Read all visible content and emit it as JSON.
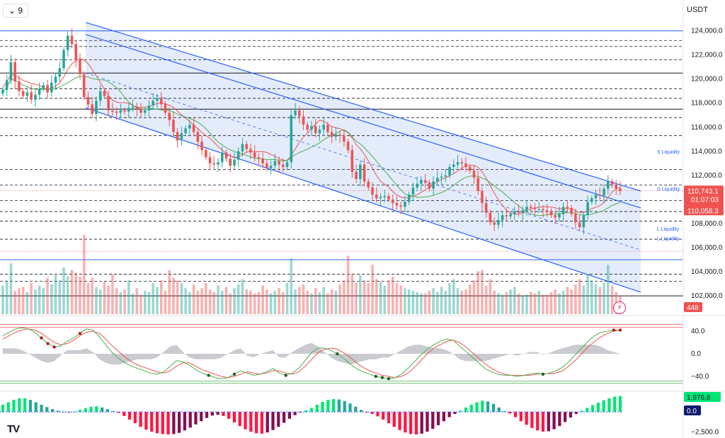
{
  "header": {
    "interval": "9",
    "currency": "USDT"
  },
  "logo_text": "TV",
  "colors": {
    "up": "#26a69a",
    "down": "#ef5350",
    "channel": "#2962ff",
    "channel_fill": "#dbe6fb",
    "bg": "#ffffff"
  },
  "icons": {
    "interval_menu": "chevron-down-icon",
    "alert": "lightning-icon"
  },
  "chart_data": [
    {
      "type": "candlestick",
      "title": "",
      "ylim": [
        101300,
        124800
      ],
      "y_ticks": [
        102000,
        104000,
        106000,
        108000,
        110000,
        112000,
        114000,
        116000,
        118000,
        120000,
        122000,
        124000
      ],
      "y_tick_labels": [
        "102,000.0",
        "104,000.0",
        "106,000.0",
        "108,000.0",
        "110,000.0",
        "112,000.0",
        "114,000.0",
        "116,000.0",
        "118,000.0",
        "120,000.0",
        "122,000.0",
        "124,000.0"
      ],
      "grid": false,
      "close": [
        119100,
        119900,
        121400,
        119800,
        119000,
        118600,
        118900,
        118300,
        118700,
        119200,
        119500,
        118900,
        119700,
        120200,
        120900,
        122400,
        123600,
        122900,
        121600,
        120400,
        118500,
        117900,
        117100,
        118200,
        119000,
        118600,
        117400,
        117300,
        117200,
        117400,
        117300,
        117600,
        117700,
        117500,
        117200,
        117400,
        117800,
        118200,
        118400,
        117900,
        117200,
        116600,
        115600,
        114900,
        115500,
        115900,
        116200,
        115600,
        114800,
        114100,
        113500,
        113000,
        112900,
        113100,
        113900,
        113400,
        112800,
        113300,
        114000,
        114600,
        114200,
        113900,
        113500,
        113400,
        113000,
        112600,
        112800,
        113200,
        112900,
        112700,
        113100,
        117000,
        117400,
        116900,
        116200,
        115800,
        116100,
        115500,
        115800,
        116200,
        115600,
        115200,
        115400,
        115300,
        114800,
        114100,
        112300,
        111700,
        112900,
        111500,
        111000,
        110400,
        110100,
        110200,
        110300,
        110000,
        109700,
        109500,
        109400,
        109800,
        110400,
        111000,
        111300,
        111600,
        111400,
        110900,
        111500,
        111800,
        111900,
        112000,
        112700,
        112900,
        113100,
        113000,
        112700,
        112400,
        111800,
        110700,
        109700,
        108900,
        108100,
        107900,
        108300,
        108700,
        108600,
        108800,
        109000,
        108900,
        109100,
        109400,
        109300,
        109200,
        109200,
        109100,
        109000,
        108700,
        108500,
        108800,
        109400,
        109300,
        108800,
        108100,
        107700,
        108700,
        109800,
        110100,
        110400,
        110300,
        110900,
        111500,
        111200,
        110900,
        110700
      ],
      "volume": [
        2200,
        2600,
        3900,
        1800,
        2000,
        2100,
        1700,
        2400,
        1900,
        2200,
        2000,
        2800,
        2300,
        3000,
        2600,
        3600,
        2900,
        3400,
        3200,
        2900,
        6100,
        2400,
        2800,
        2100,
        1900,
        2500,
        2200,
        3100,
        2000,
        1700,
        1900,
        2600,
        1600,
        2000,
        1500,
        1800,
        1700,
        2400,
        2100,
        2600,
        1800,
        3400,
        2800,
        2600,
        2400,
        2000,
        1700,
        2300,
        1800,
        2000,
        2400,
        1900,
        1700,
        2200,
        1800,
        2100,
        1600,
        2000,
        2300,
        2700,
        1900,
        1800,
        1600,
        1700,
        2200,
        1900,
        1600,
        1800,
        2000,
        1700,
        2400,
        4300,
        1900,
        2100,
        2300,
        1800,
        1600,
        2000,
        1700,
        2100,
        1600,
        1900,
        1800,
        2300,
        2600,
        4500,
        3100,
        2400,
        3000,
        2600,
        2400,
        3800,
        2700,
        2500,
        2200,
        2600,
        2900,
        2400,
        2200,
        2000,
        1900,
        1800,
        1700,
        1600,
        1600,
        1800,
        2000,
        1700,
        2100,
        1800,
        2400,
        2700,
        2000,
        1800,
        1900,
        2300,
        2600,
        3300,
        3400,
        2200,
        2700,
        1800,
        1600,
        1500,
        1700,
        1900,
        2100,
        1600,
        1400,
        1500,
        1700,
        1600,
        1800,
        1500,
        1500,
        1700,
        1900,
        1600,
        1800,
        2100,
        1900,
        2300,
        2700,
        2200,
        3100,
        2600,
        2300,
        2100,
        2400,
        3800,
        2200,
        1700,
        1400
      ]
    },
    {
      "type": "line",
      "title": "",
      "ylim": [
        -60,
        60
      ],
      "y_ticks": [
        40,
        0,
        -40
      ],
      "y_tick_labels": [
        "40.0",
        "0.0",
        "−40.0"
      ],
      "series": [
        {
          "values": [
            32,
            38,
            44,
            46,
            44,
            38,
            28,
            18,
            12,
            14,
            22,
            28,
            36,
            44,
            42,
            30,
            16,
            2,
            -8,
            -16,
            -22,
            -26,
            -30,
            -34,
            -36,
            -32,
            -22,
            -12,
            -14,
            -20,
            -28,
            -34,
            -38,
            -42,
            -44,
            -42,
            -36,
            -30,
            -34,
            -38,
            -36,
            -32,
            -26,
            -34,
            -38,
            -34,
            -26,
            -12,
            2,
            10,
            10,
            6,
            0,
            -8,
            -18,
            -26,
            -32,
            -36,
            -40,
            -42,
            -44,
            -42,
            -36,
            -26,
            -14,
            -2,
            8,
            16,
            22,
            26,
            24,
            14,
            4,
            -6,
            -16,
            -26,
            -32,
            -36,
            -38,
            -38,
            -40,
            -38,
            -36,
            -34,
            -36,
            -34,
            -30,
            -24,
            -14,
            -2,
            10,
            22,
            32,
            38,
            40,
            42,
            42
          ]
        },
        {
          "values": [
            26,
            32,
            38,
            42,
            44,
            42,
            36,
            28,
            20,
            16,
            18,
            24,
            32,
            38,
            40,
            36,
            26,
            14,
            4,
            -6,
            -14,
            -20,
            -24,
            -28,
            -32,
            -34,
            -30,
            -22,
            -16,
            -16,
            -22,
            -28,
            -32,
            -36,
            -40,
            -42,
            -40,
            -36,
            -32,
            -34,
            -36,
            -34,
            -30,
            -30,
            -34,
            -36,
            -32,
            -22,
            -10,
            2,
            8,
            10,
            8,
            2,
            -6,
            -16,
            -24,
            -30,
            -34,
            -38,
            -40,
            -42,
            -40,
            -34,
            -24,
            -12,
            0,
            10,
            16,
            22,
            24,
            20,
            12,
            2,
            -8,
            -18,
            -26,
            -32,
            -36,
            -38,
            -38,
            -38,
            -38,
            -36,
            -35,
            -35,
            -34,
            -30,
            -22,
            -12,
            0,
            12,
            22,
            30,
            36,
            40,
            42
          ]
        }
      ],
      "markers": [
        6,
        7,
        8,
        12,
        32,
        36,
        44,
        52,
        58,
        59,
        60,
        84,
        95,
        96,
        97,
        102,
        103
      ]
    },
    {
      "type": "bar",
      "title": "",
      "ylim": [
        -2800,
        2300
      ],
      "y_ticks": [
        -2500
      ],
      "y_tick_labels": [
        "−2,500.0"
      ],
      "values": [
        900,
        1200,
        1500,
        1700,
        1700,
        1500,
        1200,
        900,
        600,
        350,
        150,
        0,
        -50,
        60,
        250,
        450,
        650,
        700,
        550,
        350,
        100,
        -120,
        -500,
        -950,
        -1400,
        -1850,
        -2200,
        -2450,
        -2650,
        -2750,
        -2800,
        -2750,
        -2600,
        -2300,
        -1950,
        -1550,
        -1150,
        -750,
        -450,
        -350,
        -500,
        -850,
        -1300,
        -1750,
        -2150,
        -2450,
        -2650,
        -2700,
        -2550,
        -2250,
        -1850,
        -1350,
        -850,
        -400,
        -80,
        200,
        500,
        900,
        1250,
        1500,
        1600,
        1550,
        1350,
        1050,
        650,
        250,
        -50,
        -250,
        -550,
        -950,
        -1400,
        -1850,
        -2250,
        -2550,
        -2750,
        -2800,
        -2700,
        -2450,
        -2100,
        -1650,
        -1150,
        -650,
        -250,
        150,
        550,
        900,
        1200,
        1400,
        1300,
        1000,
        550,
        100,
        -200,
        -650,
        -1150,
        -1600,
        -2000,
        -2300,
        -2450,
        -2400,
        -2150,
        -1750,
        -1250,
        -700,
        -250,
        150,
        500,
        850,
        1150,
        1450,
        1700,
        1900,
        1976.8
      ]
    }
  ],
  "price_panel": {
    "channel_top": {
      "x0": 121,
      "y0": 124700,
      "x1": 905,
      "y1": 110700
    },
    "channel_mid": {
      "x0": 121,
      "y0": 123700,
      "x1": 905,
      "y1": 109300
    },
    "channel_bottom": {
      "x0": 121,
      "y0": 117600,
      "x1": 905,
      "y1": 102300
    },
    "channel_dash": {
      "x0": 121,
      "y0": 120500,
      "x1": 905,
      "y1": 105800
    },
    "h_lines_solid": [
      124000,
      120500,
      117500,
      105000,
      102000
    ],
    "h_lines_dashed": [
      123200,
      122700,
      121600,
      119200,
      118400,
      116800,
      115300,
      112500,
      111200,
      109900,
      109000,
      108200,
      106700,
      103800,
      103200
    ],
    "h_lines_red_dashed": [
      110743,
      105700
    ],
    "liquidity_labels": [
      {
        "text": "S Liquidity",
        "price": 114000
      },
      {
        "text": "S Liquidity",
        "price": 110900
      },
      {
        "text": "L Liquidity",
        "price": 107600
      },
      {
        "text": "L Liquidity",
        "price": 106800
      }
    ]
  },
  "price_tags": {
    "last_price": "110,743.1",
    "countdown": "01:07:03",
    "level": "110,058.3",
    "volume_last": "448",
    "macd_last": "1,976.8",
    "macd_zero": "0.0"
  }
}
